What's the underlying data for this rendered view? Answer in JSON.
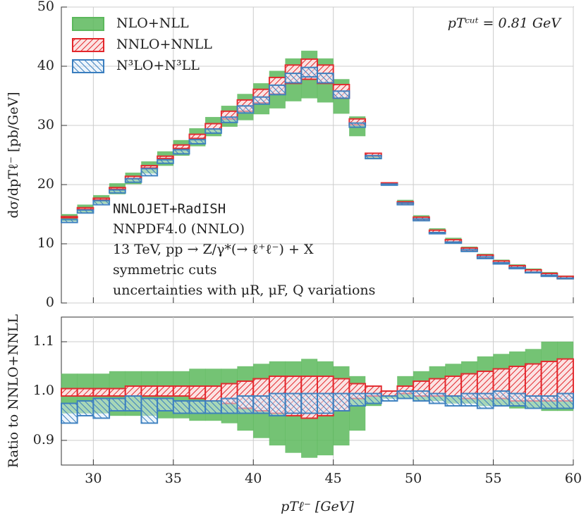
{
  "chart_data": [
    {
      "type": "band",
      "ylabel": "dσ/dpTℓ⁻ [pb/GeV]",
      "annotation": "pTᶜᵘᵗ = 0.81 GeV",
      "text_lines": [
        "NNLOJET+RadISH",
        "NNPDF4.0 (NNLO)",
        "13 TeV, pp → Z/γ*(→ ℓ⁺ℓ⁻) + X",
        "symmetric cuts",
        "uncertainties with μR, μF, Q variations"
      ],
      "bins": [
        28,
        29,
        30,
        31,
        32,
        33,
        34,
        35,
        36,
        37,
        38,
        39,
        40,
        41,
        42,
        43,
        44,
        45,
        46,
        47,
        48,
        49,
        50,
        51,
        52,
        53,
        54,
        55,
        56,
        57,
        58,
        59,
        60
      ],
      "xlim": [
        28,
        60
      ],
      "xticks": [
        30,
        35,
        40,
        45,
        50,
        55,
        60
      ],
      "ylim": [
        0,
        50
      ],
      "yticks": [
        0,
        10,
        20,
        30,
        40,
        50
      ],
      "grid": true,
      "legend": "upper left",
      "series": [
        {
          "name": "NLO+NLL",
          "color": "#5cb85c",
          "lower": [
            13.8,
            15.3,
            16.8,
            18.4,
            20.1,
            21.9,
            23.2,
            24.9,
            26.5,
            28.2,
            29.8,
            30.9,
            31.9,
            32.9,
            34.1,
            34.6,
            33.9,
            32.0,
            28.2,
            24.3,
            20.0,
            16.6,
            13.9,
            11.8,
            10.1,
            8.8,
            7.6,
            6.6,
            5.8,
            5.1,
            4.5,
            4.0
          ],
          "upper": [
            15.0,
            16.6,
            18.2,
            20.2,
            22.0,
            23.9,
            25.6,
            27.5,
            29.5,
            31.4,
            33.3,
            35.3,
            37.1,
            39.2,
            41.3,
            42.6,
            41.3,
            37.8,
            31.5,
            25.3,
            20.3,
            17.4,
            14.8,
            12.6,
            11.0,
            9.5,
            8.3,
            7.3,
            6.5,
            5.8,
            5.2,
            4.6
          ]
        },
        {
          "name": "NNLO+NNLL",
          "color": "#e3262b",
          "lower": [
            14.4,
            15.8,
            17.4,
            19.2,
            21.0,
            22.8,
            24.4,
            26.1,
            27.8,
            29.4,
            31.1,
            32.4,
            33.8,
            35.3,
            37.1,
            37.8,
            37.1,
            34.6,
            30.1,
            24.8,
            20.1,
            16.8,
            14.1,
            11.9,
            10.3,
            8.9,
            7.7,
            6.7,
            5.9,
            5.2,
            4.6,
            4.1
          ],
          "upper": [
            14.6,
            16.1,
            17.7,
            19.5,
            21.4,
            23.2,
            24.8,
            26.7,
            28.5,
            30.3,
            32.4,
            34.3,
            36.1,
            38.1,
            40.2,
            41.2,
            40.2,
            36.9,
            31.1,
            25.3,
            20.3,
            17.1,
            14.5,
            12.3,
            10.7,
            9.3,
            8.1,
            7.1,
            6.3,
            5.6,
            5.0,
            4.5
          ]
        },
        {
          "name": "N³LO+N³LL",
          "color": "#3a7ebf",
          "lower": [
            13.6,
            15.2,
            16.6,
            18.6,
            20.4,
            21.5,
            23.6,
            25.2,
            26.9,
            28.7,
            30.5,
            32.1,
            33.6,
            35.2,
            37.2,
            38.2,
            37.2,
            34.6,
            29.7,
            24.4,
            19.9,
            16.6,
            13.9,
            11.7,
            10.1,
            8.7,
            7.5,
            6.6,
            5.8,
            5.1,
            4.5,
            4.1
          ],
          "upper": [
            14.1,
            15.7,
            17.3,
            19.1,
            21.0,
            22.7,
            24.2,
            25.9,
            27.6,
            29.4,
            31.4,
            33.3,
            34.8,
            36.8,
            38.8,
            39.8,
            38.8,
            35.8,
            30.4,
            24.9,
            20.1,
            16.9,
            14.2,
            11.9,
            10.3,
            9.0,
            7.8,
            6.8,
            6.0,
            5.2,
            4.7,
            4.2
          ]
        }
      ]
    },
    {
      "type": "band",
      "ylabel": "Ratio to NNLO+NNLL",
      "xlabel": "pTℓ⁻ [GeV]",
      "bins": [
        28,
        29,
        30,
        31,
        32,
        33,
        34,
        35,
        36,
        37,
        38,
        39,
        40,
        41,
        42,
        43,
        44,
        45,
        46,
        47,
        48,
        49,
        50,
        51,
        52,
        53,
        54,
        55,
        56,
        57,
        58,
        59,
        60
      ],
      "xlim": [
        28,
        60
      ],
      "xticks": [
        30,
        35,
        40,
        45,
        50,
        55,
        60
      ],
      "ylim": [
        0.85,
        1.15
      ],
      "yticks": [
        0.9,
        {
          "value": 1,
          "label": "1.0"
        },
        1.1
      ],
      "grid": true,
      "series": [
        {
          "name": "NLO+NLL",
          "color": "#5cb85c",
          "lower": [
            0.955,
            0.955,
            0.955,
            0.95,
            0.95,
            0.95,
            0.945,
            0.945,
            0.94,
            0.94,
            0.935,
            0.92,
            0.905,
            0.89,
            0.875,
            0.865,
            0.87,
            0.89,
            0.92,
            0.97,
            0.985,
            0.985,
            0.98,
            0.98,
            0.975,
            0.975,
            0.97,
            0.97,
            0.965,
            0.965,
            0.96,
            0.96
          ],
          "upper": [
            1.035,
            1.035,
            1.035,
            1.04,
            1.04,
            1.04,
            1.04,
            1.04,
            1.045,
            1.045,
            1.045,
            1.05,
            1.055,
            1.06,
            1.06,
            1.065,
            1.06,
            1.05,
            1.03,
            1.01,
            1.0,
            1.03,
            1.04,
            1.05,
            1.055,
            1.06,
            1.07,
            1.075,
            1.08,
            1.085,
            1.1,
            1.1
          ]
        },
        {
          "name": "NNLO+NNLL",
          "color": "#e3262b",
          "lower": [
            0.99,
            0.99,
            0.99,
            0.99,
            0.99,
            0.99,
            0.99,
            0.99,
            0.985,
            0.98,
            0.975,
            0.965,
            0.96,
            0.955,
            0.95,
            0.945,
            0.95,
            0.96,
            0.985,
            0.99,
            0.99,
            0.995,
            0.99,
            0.99,
            0.99,
            0.985,
            0.985,
            0.985,
            0.98,
            0.98,
            0.98,
            0.98
          ],
          "upper": [
            1.005,
            1.005,
            1.005,
            1.005,
            1.01,
            1.01,
            1.01,
            1.01,
            1.01,
            1.01,
            1.015,
            1.02,
            1.025,
            1.03,
            1.03,
            1.03,
            1.03,
            1.025,
            1.015,
            1.01,
            1.0,
            1.01,
            1.02,
            1.025,
            1.03,
            1.035,
            1.04,
            1.045,
            1.05,
            1.055,
            1.06,
            1.065
          ]
        },
        {
          "name": "N³LO+N³LL",
          "color": "#3a7ebf",
          "lower": [
            0.935,
            0.95,
            0.945,
            0.96,
            0.96,
            0.935,
            0.96,
            0.955,
            0.955,
            0.955,
            0.955,
            0.955,
            0.955,
            0.95,
            0.955,
            0.955,
            0.955,
            0.96,
            0.97,
            0.975,
            0.98,
            0.985,
            0.98,
            0.975,
            0.97,
            0.97,
            0.965,
            0.97,
            0.97,
            0.965,
            0.965,
            0.965
          ],
          "upper": [
            0.975,
            0.98,
            0.985,
            0.985,
            0.99,
            0.985,
            0.985,
            0.98,
            0.98,
            0.98,
            0.985,
            0.99,
            0.99,
            0.995,
            0.995,
            0.995,
            0.995,
            0.995,
            0.995,
            0.995,
            0.99,
            1.0,
            1.0,
            0.995,
            0.99,
            0.995,
            0.995,
            1.0,
            0.995,
            0.99,
            0.99,
            0.995
          ]
        }
      ]
    }
  ]
}
